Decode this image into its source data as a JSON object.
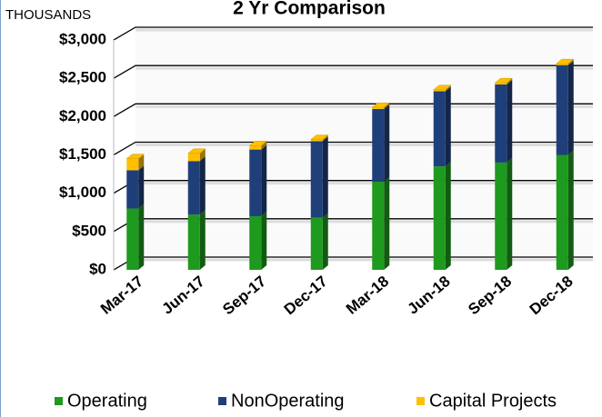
{
  "chart_data": {
    "type": "bar3d-stacked",
    "title": "2 Yr Comparison",
    "y_unit_label": "THOUSANDS",
    "categories": [
      "Mar-17",
      "Jun-17",
      "Sep-17",
      "Dec-17",
      "Mar-18",
      "Jun-18",
      "Sep-18",
      "Dec-18"
    ],
    "series": [
      {
        "name": "Operating",
        "color": "#1e9a1e",
        "values": [
          800,
          720,
          700,
          680,
          1150,
          1350,
          1400,
          1500
        ]
      },
      {
        "name": "NonOperating",
        "color": "#1f3f7a",
        "values": [
          500,
          700,
          870,
          1000,
          950,
          980,
          1020,
          1170
        ]
      },
      {
        "name": "Capital Projects",
        "color": "#ffc000",
        "values": [
          150,
          100,
          50,
          20,
          20,
          20,
          20,
          20
        ]
      }
    ],
    "ylim": [
      0,
      3000
    ],
    "yticks": [
      {
        "value": 0,
        "label": "$0"
      },
      {
        "value": 500,
        "label": "$500"
      },
      {
        "value": 1000,
        "label": "$1,000"
      },
      {
        "value": 1500,
        "label": "$1,500"
      },
      {
        "value": 2000,
        "label": "$2,000"
      },
      {
        "value": 2500,
        "label": "$2,500"
      },
      {
        "value": 3000,
        "label": "$3,000"
      }
    ],
    "grid": true,
    "legend": "bottom"
  }
}
